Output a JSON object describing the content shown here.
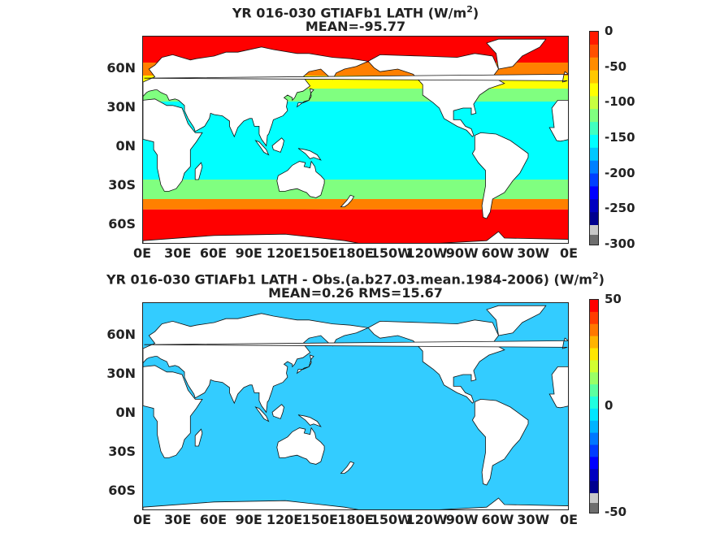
{
  "chart_data": [
    {
      "type": "heatmap",
      "title": "YR 016-030 GTIAFb1  LATH (W/m",
      "title_sup": "2",
      "title_close": ")",
      "subtitle": "MEAN=-95.77",
      "x_ticks": [
        "0E",
        "30E",
        "60E",
        "90E",
        "120E",
        "150E",
        "180E",
        "150W",
        "120W",
        "90W",
        "60W",
        "30W",
        "0E"
      ],
      "y_ticks": [
        "60N",
        "30N",
        "0N",
        "30S",
        "60S"
      ],
      "colorbar_ticks": [
        "0",
        "-50",
        "-100",
        "-150",
        "-200",
        "-250",
        "-300"
      ],
      "colorbar_range": [
        -300,
        0
      ],
      "colormap": "jet",
      "mean": -95.77
    },
    {
      "type": "heatmap",
      "title": "YR 016-030 GTIAFb1 LATH - Obs.(a.b27.03.mean.1984-2006) (W/m",
      "title_sup": "2",
      "title_close": ")",
      "subtitle": "MEAN=0.26 RMS=15.67",
      "x_ticks": [
        "0E",
        "30E",
        "60E",
        "90E",
        "120E",
        "150E",
        "180E",
        "150W",
        "120W",
        "90W",
        "60W",
        "30W",
        "0E"
      ],
      "y_ticks": [
        "60N",
        "30N",
        "0N",
        "30S",
        "60S"
      ],
      "colorbar_ticks": [
        "50",
        "0",
        "-50"
      ],
      "colorbar_range": [
        -50,
        50
      ],
      "colormap": "jet",
      "mean": 0.26,
      "rms": 15.67
    }
  ],
  "colors": {
    "jet": [
      "#7f0000",
      "#ff0000",
      "#ff8000",
      "#ffff00",
      "#80ff80",
      "#00ffff",
      "#0080ff",
      "#0000ff",
      "#00008f"
    ],
    "land": "#ffffff",
    "missing_light": "#c8c8c8",
    "missing_dark": "#6e6e6e"
  }
}
